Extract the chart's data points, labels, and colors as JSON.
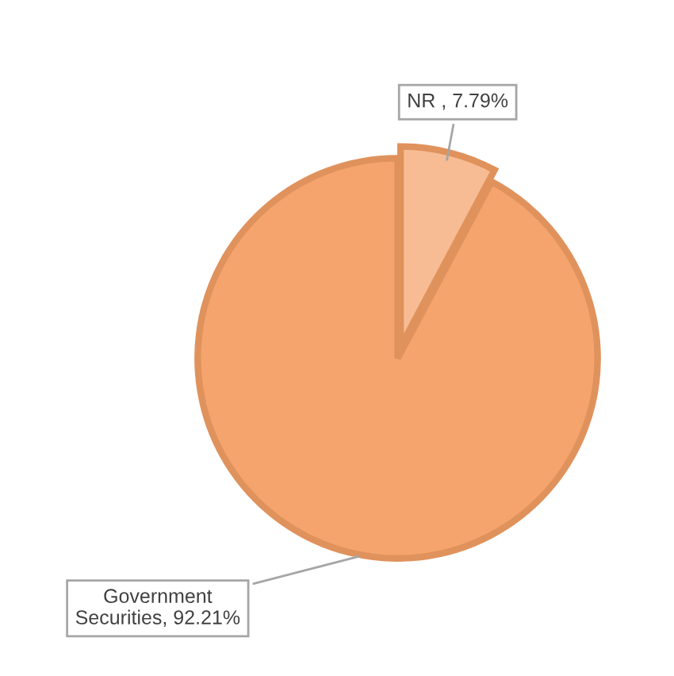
{
  "chart_data": {
    "type": "pie",
    "categories": [
      "NR ",
      "Government Securities"
    ],
    "values": [
      7.79,
      92.21
    ],
    "value_labels": [
      "7.79%",
      "92.21%"
    ],
    "colors": [
      "#f8bc94",
      "#f4a46c"
    ],
    "legend": false
  }
}
